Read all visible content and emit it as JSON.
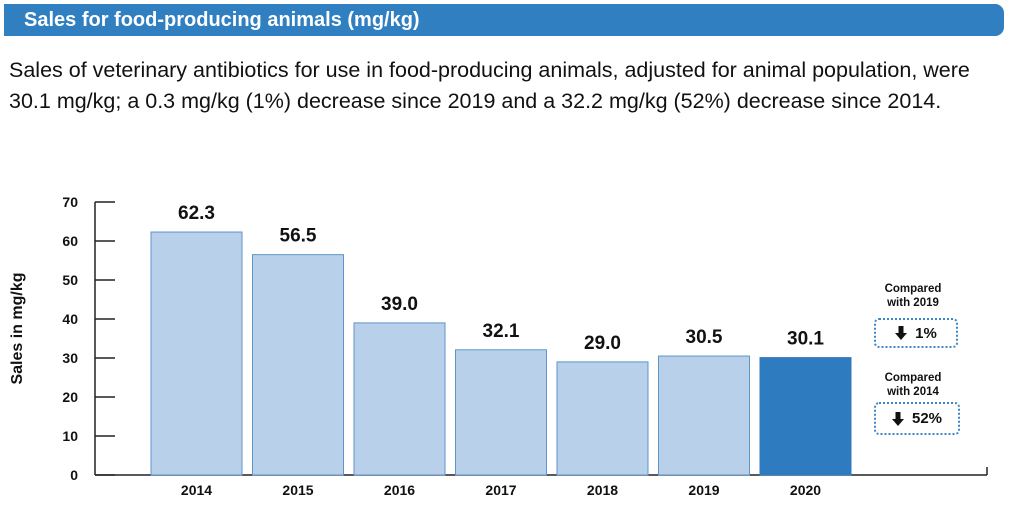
{
  "header": {
    "title": "Sales for food-producing animals (mg/kg)"
  },
  "summary": "Sales of veterinary antibiotics for use in food-producing animals, adjusted for animal population, were 30.1 mg/kg; a 0.3 mg/kg (1%) decrease since 2019 and a 32.2 mg/kg (52%) decrease since 2014.",
  "colors": {
    "header": "#2f7fc1",
    "bar_default": "#b8d0ea",
    "bar_highlight": "#2e7bbf",
    "bar_border": "#5f95c8"
  },
  "callouts": [
    {
      "title_line1": "Compared",
      "title_line2": "with 2019",
      "icon": "arrow-down-icon",
      "value": "1%"
    },
    {
      "title_line1": "Compared",
      "title_line2": "with 2014",
      "icon": "arrow-down-icon",
      "value": "52%"
    }
  ],
  "chart_data": {
    "type": "bar",
    "title": "Sales for food-producing animals (mg/kg)",
    "xlabel": "",
    "ylabel": "Sales in mg/kg",
    "categories": [
      "2014",
      "2015",
      "2016",
      "2017",
      "2018",
      "2019",
      "2020"
    ],
    "values": [
      62.3,
      56.5,
      39.0,
      32.1,
      29.0,
      30.5,
      30.1
    ],
    "value_labels": [
      "62.3",
      "56.5",
      "39.0",
      "32.1",
      "29.0",
      "30.5",
      "30.1"
    ],
    "highlight_category": "2020",
    "ylim": [
      0,
      70
    ],
    "yticks": [
      0,
      10,
      20,
      30,
      40,
      50,
      60,
      70
    ],
    "grid": false
  }
}
